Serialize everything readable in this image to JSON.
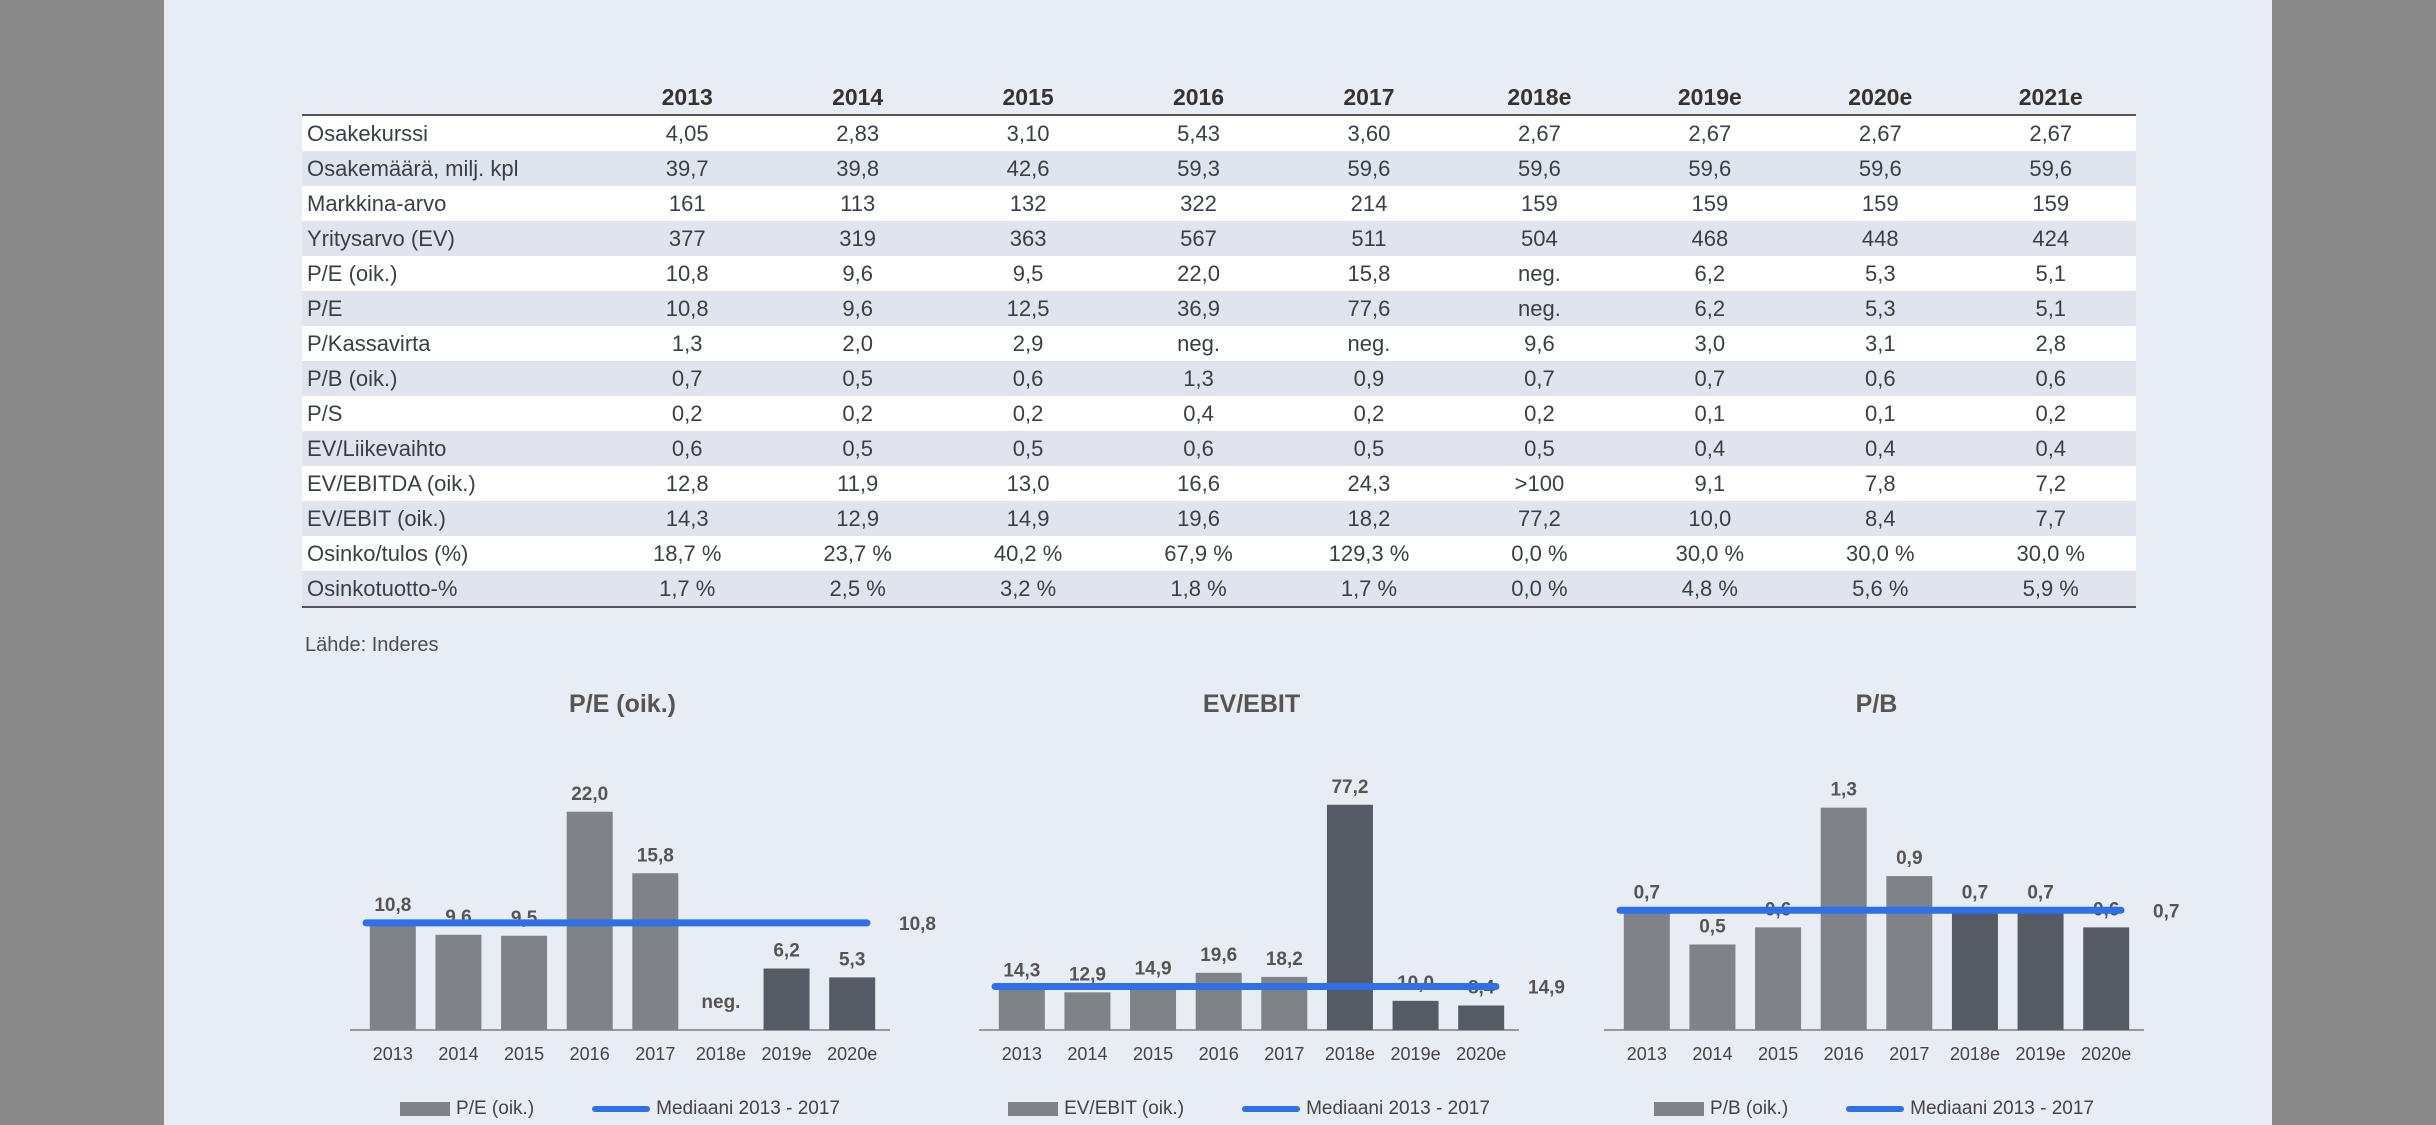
{
  "table": {
    "headers": [
      "",
      "2013",
      "2014",
      "2015",
      "2016",
      "2017",
      "2018e",
      "2019e",
      "2020e",
      "2021e"
    ],
    "rows": [
      {
        "label": "Osakekurssi",
        "values": [
          "4,05",
          "2,83",
          "3,10",
          "5,43",
          "3,60",
          "2,67",
          "2,67",
          "2,67",
          "2,67"
        ]
      },
      {
        "label": "Osakemäärä, milj. kpl",
        "values": [
          "39,7",
          "39,8",
          "42,6",
          "59,3",
          "59,6",
          "59,6",
          "59,6",
          "59,6",
          "59,6"
        ]
      },
      {
        "label": "Markkina-arvo",
        "values": [
          "161",
          "113",
          "132",
          "322",
          "214",
          "159",
          "159",
          "159",
          "159"
        ]
      },
      {
        "label": "Yritysarvo (EV)",
        "values": [
          "377",
          "319",
          "363",
          "567",
          "511",
          "504",
          "468",
          "448",
          "424"
        ]
      },
      {
        "label": "P/E (oik.)",
        "values": [
          "10,8",
          "9,6",
          "9,5",
          "22,0",
          "15,8",
          "neg.",
          "6,2",
          "5,3",
          "5,1"
        ]
      },
      {
        "label": "P/E",
        "values": [
          "10,8",
          "9,6",
          "12,5",
          "36,9",
          "77,6",
          "neg.",
          "6,2",
          "5,3",
          "5,1"
        ]
      },
      {
        "label": "P/Kassavirta",
        "values": [
          "1,3",
          "2,0",
          "2,9",
          "neg.",
          "neg.",
          "9,6",
          "3,0",
          "3,1",
          "2,8"
        ]
      },
      {
        "label": "P/B (oik.)",
        "values": [
          "0,7",
          "0,5",
          "0,6",
          "1,3",
          "0,9",
          "0,7",
          "0,7",
          "0,6",
          "0,6"
        ]
      },
      {
        "label": "P/S",
        "values": [
          "0,2",
          "0,2",
          "0,2",
          "0,4",
          "0,2",
          "0,2",
          "0,1",
          "0,1",
          "0,2"
        ]
      },
      {
        "label": "EV/Liikevaihto",
        "values": [
          "0,6",
          "0,5",
          "0,5",
          "0,6",
          "0,5",
          "0,5",
          "0,4",
          "0,4",
          "0,4"
        ]
      },
      {
        "label": "EV/EBITDA (oik.)",
        "values": [
          "12,8",
          "11,9",
          "13,0",
          "16,6",
          "24,3",
          ">100",
          "9,1",
          "7,8",
          "7,2"
        ]
      },
      {
        "label": "EV/EBIT (oik.)",
        "values": [
          "14,3",
          "12,9",
          "14,9",
          "19,6",
          "18,2",
          "77,2",
          "10,0",
          "8,4",
          "7,7"
        ]
      },
      {
        "label": "Osinko/tulos (%)",
        "values": [
          "18,7 %",
          "23,7 %",
          "40,2 %",
          "67,9 %",
          "129,3 %",
          "0,0 %",
          "30,0 %",
          "30,0 %",
          "30,0 %"
        ]
      },
      {
        "label": "Osinkotuotto-%",
        "values": [
          "1,7 %",
          "2,5 %",
          "3,2 %",
          "1,8 %",
          "1,7 %",
          "0,0 %",
          "4,8 %",
          "5,6 %",
          "5,9 %"
        ]
      }
    ]
  },
  "source": "Lähde: Inderes",
  "colors": {
    "historical_bar": "#7f8388",
    "forecast_bar": "#555b65",
    "median_line": "#2f6fe8"
  },
  "chart_data": [
    {
      "type": "bar",
      "title": "P/E (oik.)",
      "categories": [
        "2013",
        "2014",
        "2015",
        "2016",
        "2017",
        "2018e",
        "2019e",
        "2020e"
      ],
      "values": [
        10.8,
        9.6,
        9.5,
        22.0,
        15.8,
        null,
        6.2,
        5.3
      ],
      "labels": [
        "10,8",
        "9,6",
        "9,5",
        "22,0",
        "15,8",
        "neg.",
        "6,2",
        "5,3"
      ],
      "forecast_from_index": 6,
      "median": 10.8,
      "median_label": "10,8",
      "ymax": 25,
      "legend": [
        "P/E (oik.)",
        "Mediaani 2013 - 2017"
      ]
    },
    {
      "type": "bar",
      "title": "EV/EBIT",
      "categories": [
        "2013",
        "2014",
        "2015",
        "2016",
        "2017",
        "2018e",
        "2019e",
        "2020e"
      ],
      "values": [
        14.3,
        12.9,
        14.9,
        19.6,
        18.2,
        77.2,
        10.0,
        8.4
      ],
      "labels": [
        "14,3",
        "12,9",
        "14,9",
        "19,6",
        "18,2",
        "77,2",
        "10,0",
        "8,4"
      ],
      "forecast_from_index": 5,
      "median": 14.9,
      "median_label": "14,9",
      "ymax": 85,
      "legend": [
        "EV/EBIT (oik.)",
        "Mediaani 2013 - 2017"
      ]
    },
    {
      "type": "bar",
      "title": "P/B",
      "categories": [
        "2013",
        "2014",
        "2015",
        "2016",
        "2017",
        "2018e",
        "2019e",
        "2020e"
      ],
      "values": [
        0.7,
        0.5,
        0.6,
        1.3,
        0.9,
        0.7,
        0.7,
        0.6
      ],
      "labels": [
        "0,7",
        "0,5",
        "0,6",
        "1,3",
        "0,9",
        "0,7",
        "0,7",
        "0,6"
      ],
      "forecast_from_index": 5,
      "median": 0.7,
      "median_label": "0,7",
      "ymax": 1.45,
      "legend": [
        "P/B (oik.)",
        "Mediaani 2013 - 2017"
      ]
    }
  ]
}
